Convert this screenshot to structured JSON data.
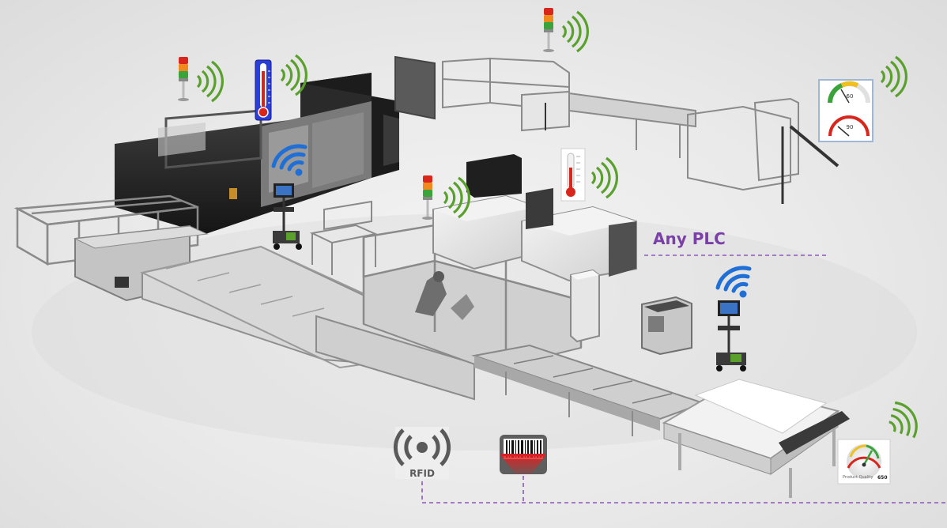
{
  "labels": {
    "plc": "Any PLC",
    "rfid": "RFID"
  },
  "gauges": {
    "gauge_top": {
      "value_top": "60",
      "value_bottom": "90"
    },
    "gauge_bottom": {
      "caption": "Product Quality",
      "value": "650"
    }
  },
  "colors": {
    "accent": "#7b3fa8",
    "signal": "#5aa02c",
    "wifi": "#1f6fd6",
    "stack_red": "#d9261c",
    "stack_orange": "#f08a1e",
    "stack_green": "#3aa43a",
    "barcode_red": "#d8222a"
  },
  "icons": [
    "signal-tower-icon",
    "wifi-icon",
    "thermometer-icon",
    "gauge-icon",
    "rfid-icon",
    "barcode-scanner-icon",
    "signal-waves-icon"
  ]
}
